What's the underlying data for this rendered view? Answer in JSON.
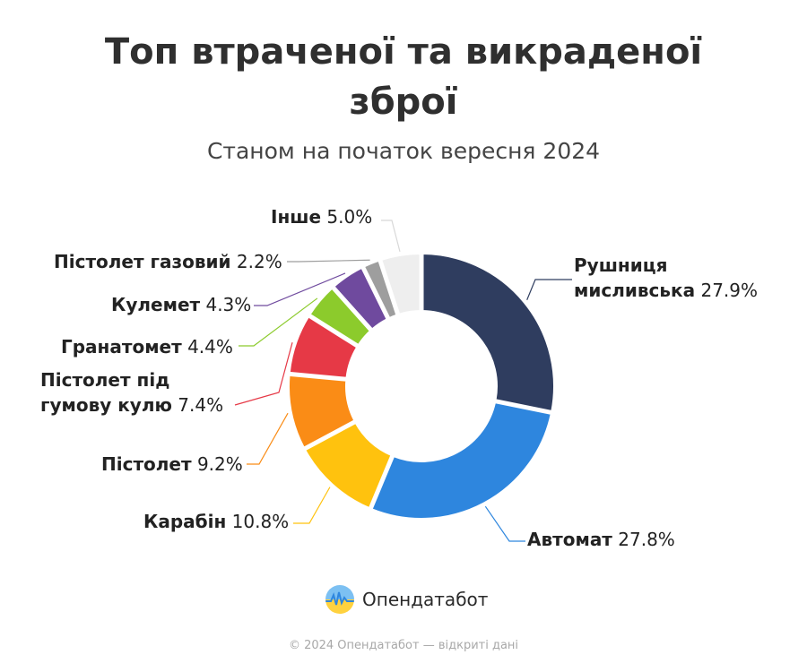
{
  "title_line1": "Топ втраченої та викраденої",
  "title_line2": "зброї",
  "subtitle": "Станом на початок вересня 2024",
  "chart_data": {
    "type": "pie",
    "donut": true,
    "title": "Топ втраченої та викраденої зброї",
    "subtitle": "Станом на початок вересня 2024",
    "unit": "%",
    "slices": [
      {
        "label": "Рушниця мисливська",
        "label_lines": [
          "Рушниця",
          "мисливська"
        ],
        "value": 27.9,
        "value_text": "27.9%",
        "color": "#2f3d5f"
      },
      {
        "label": "Автомат",
        "label_lines": [
          "Автомат"
        ],
        "value": 27.8,
        "value_text": "27.8%",
        "color": "#2e86de"
      },
      {
        "label": "Карабін",
        "label_lines": [
          "Карабін"
        ],
        "value": 10.8,
        "value_text": "10.8%",
        "color": "#ffc20e"
      },
      {
        "label": "Пістолет",
        "label_lines": [
          "Пістолет"
        ],
        "value": 9.2,
        "value_text": "9.2%",
        "color": "#fa8c16"
      },
      {
        "label": "Пістолет під гумову кулю",
        "label_lines": [
          "Пістолет під",
          "гумову кулю"
        ],
        "value": 7.4,
        "value_text": "7.4%",
        "color": "#e63946"
      },
      {
        "label": "Гранатомет",
        "label_lines": [
          "Гранатомет"
        ],
        "value": 4.4,
        "value_text": "4.4%",
        "color": "#8ccb2c"
      },
      {
        "label": "Кулемет",
        "label_lines": [
          "Кулемет"
        ],
        "value": 4.3,
        "value_text": "4.3%",
        "color": "#6f4a9e"
      },
      {
        "label": "Пістолет газовий",
        "label_lines": [
          "Пістолет газовий"
        ],
        "value": 2.2,
        "value_text": "2.2%",
        "color": "#9e9e9e"
      },
      {
        "label": "Інше",
        "label_lines": [
          "Інше"
        ],
        "value": 5.0,
        "value_text": "5.0%",
        "color": "#eeeeee",
        "leader_color": "#d8d8d8"
      }
    ]
  },
  "brand": {
    "name": "Опендатабот",
    "logo_icon": "opendatabot-logo-icon",
    "logo_colors": [
      "#7cc0f2",
      "#ffd23f"
    ]
  },
  "footer": "© 2024 Опендатабот — відкриті дані"
}
